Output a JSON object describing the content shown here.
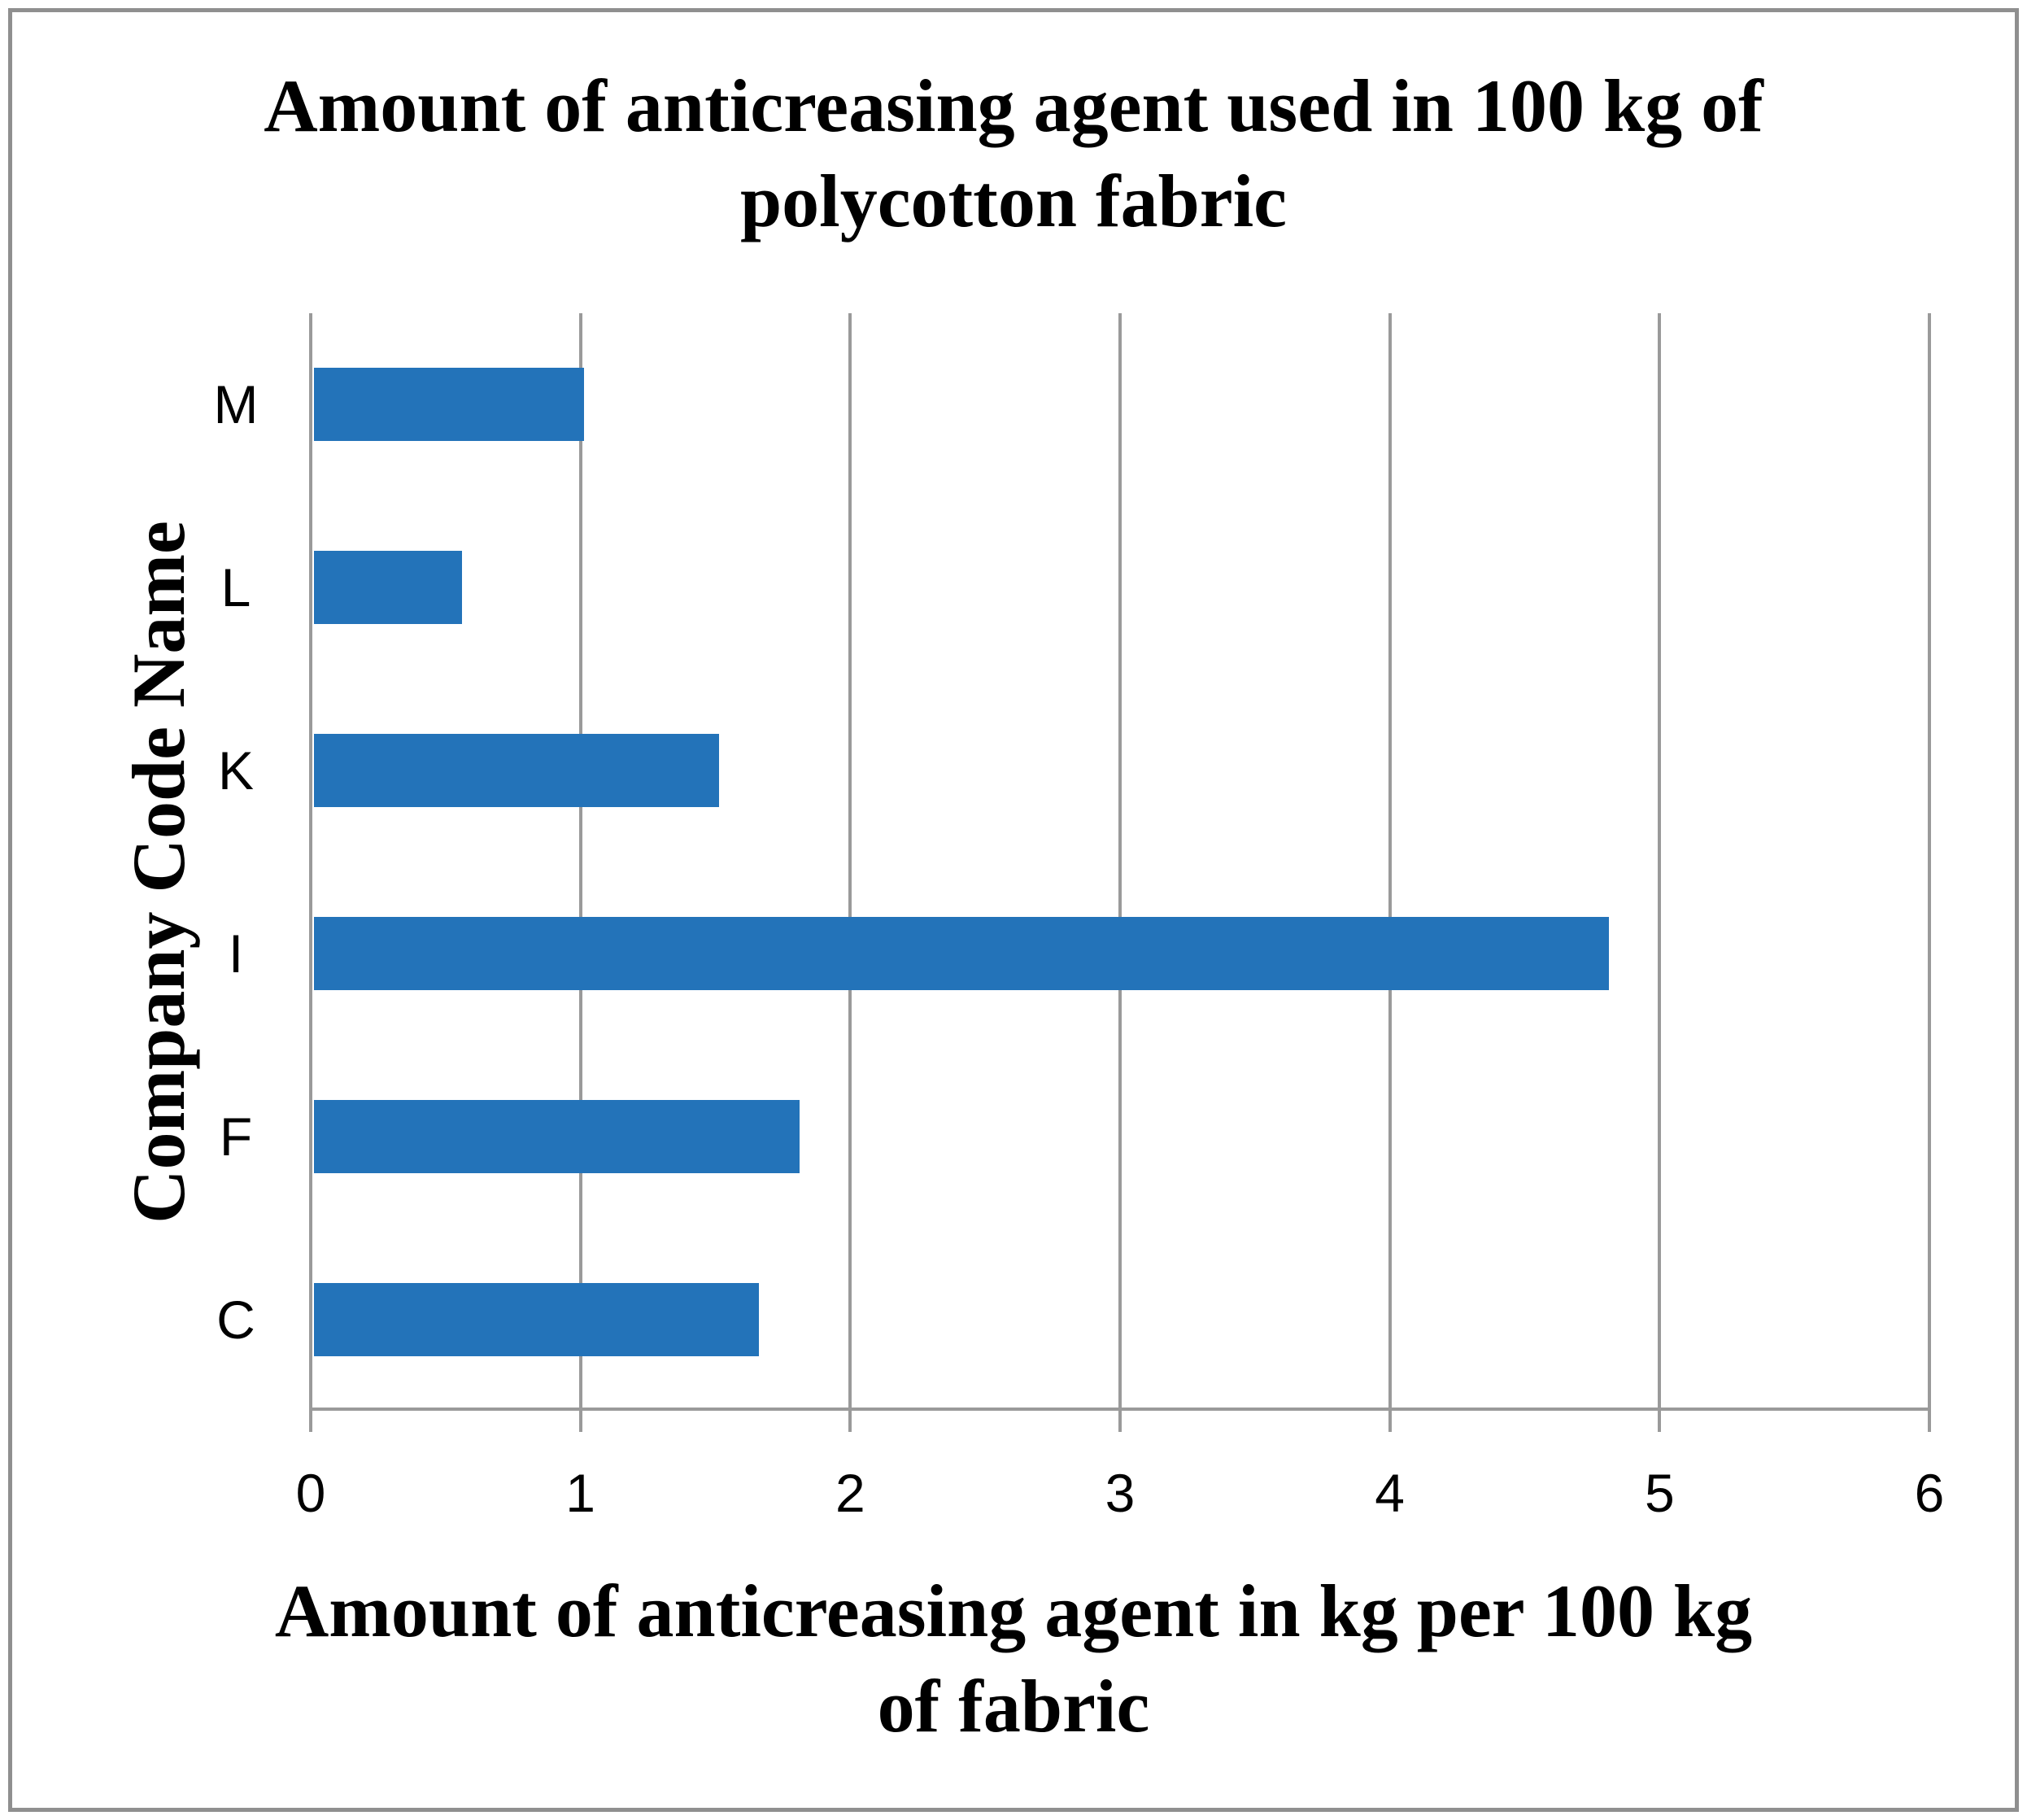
{
  "chart_data": {
    "type": "bar",
    "orientation": "horizontal",
    "title": "Amount of anticreasing agent used in 100 kg of polycotton fabric",
    "title_lines": [
      "Amount of anticreasing agent used in 100 kg of",
      "polycotton fabric"
    ],
    "categories": [
      "M",
      "L",
      "K",
      "I",
      "F",
      "C"
    ],
    "values": [
      1.0,
      0.55,
      1.5,
      4.8,
      1.8,
      1.65
    ],
    "xlabel": "Amount of anticreasing agent in kg per 100 kg of fabric",
    "xlabel_lines": [
      "Amount of anticreasing agent in kg per 100 kg",
      "of fabric"
    ],
    "ylabel": "Company Code Name",
    "xlim": [
      0,
      6
    ],
    "xticks": [
      0,
      1,
      2,
      3,
      4,
      5,
      6
    ],
    "grid": "vertical",
    "legend": "none",
    "colors": {
      "bar": "#2373b9",
      "gridline": "#9a9a9a",
      "axis": "#9a9a9a",
      "border": "#8f8f8f",
      "text": "#000000",
      "background": "#ffffff"
    }
  }
}
